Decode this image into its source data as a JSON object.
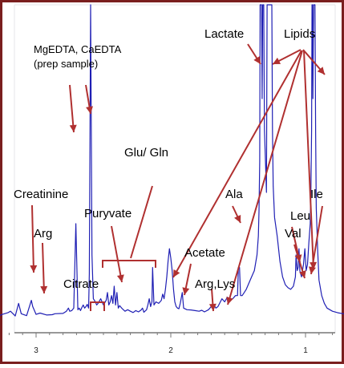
{
  "chart_data": {
    "type": "line",
    "title": "",
    "xlabel": "",
    "ylabel": "",
    "x_reversed": true,
    "xlim": [
      3.3,
      0.7
    ],
    "ticks": [
      {
        "value": 3,
        "label": "3"
      },
      {
        "value": 2,
        "label": "2"
      },
      {
        "value": 1,
        "label": "1"
      }
    ],
    "series": [
      {
        "color": "#1f1fb4",
        "points": [
          [
            3.3,
            0.0
          ],
          [
            3.25,
            1.0
          ],
          [
            3.21,
            1.5
          ],
          [
            3.19,
            2.0
          ],
          [
            3.155,
            0.5
          ],
          [
            3.13,
            4.5
          ],
          [
            3.11,
            1.2
          ],
          [
            3.07,
            0.6
          ],
          [
            3.035,
            5.5
          ],
          [
            3.025,
            3.5
          ],
          [
            3.0,
            1.0
          ],
          [
            2.97,
            1.4
          ],
          [
            2.92,
            0.8
          ],
          [
            2.88,
            0.9
          ],
          [
            2.86,
            1.2
          ],
          [
            2.8,
            1.3
          ],
          [
            2.775,
            2.0
          ],
          [
            2.76,
            3.0
          ],
          [
            2.75,
            2.0
          ],
          [
            2.735,
            2.2
          ],
          [
            2.72,
            3.0
          ],
          [
            2.705,
            30.0
          ],
          [
            2.69,
            2.5
          ],
          [
            2.68,
            3.0
          ],
          [
            2.67,
            2.2
          ],
          [
            2.66,
            3.2
          ],
          [
            2.65,
            4.0
          ],
          [
            2.64,
            3.0
          ],
          [
            2.63,
            3.5
          ],
          [
            2.62,
            4.2
          ],
          [
            2.61,
            3.0
          ],
          [
            2.605,
            14.0
          ],
          [
            2.595,
            100.0
          ],
          [
            2.585,
            20.0
          ],
          [
            2.575,
            6.0
          ],
          [
            2.56,
            5.0
          ],
          [
            2.55,
            4.0
          ],
          [
            2.54,
            4.5
          ],
          [
            2.52,
            6.0
          ],
          [
            2.5,
            4.0
          ],
          [
            2.48,
            5.5
          ],
          [
            2.47,
            8.0
          ],
          [
            2.46,
            4.0
          ],
          [
            2.45,
            5.0
          ],
          [
            2.44,
            7.0
          ],
          [
            2.43,
            4.5
          ],
          [
            2.42,
            10.0
          ],
          [
            2.41,
            4.0
          ],
          [
            2.4,
            8.0
          ],
          [
            2.39,
            3.0
          ],
          [
            2.38,
            3.8
          ],
          [
            2.36,
            2.8
          ],
          [
            2.34,
            2.0
          ],
          [
            2.32,
            2.5
          ],
          [
            2.3,
            2.0
          ],
          [
            2.28,
            1.6
          ],
          [
            2.26,
            2.2
          ],
          [
            2.24,
            1.8
          ],
          [
            2.22,
            2.4
          ],
          [
            2.21,
            3.0
          ],
          [
            2.2,
            1.7
          ],
          [
            2.18,
            2.5
          ],
          [
            2.17,
            4.0
          ],
          [
            2.16,
            6.0
          ],
          [
            2.15,
            3.5
          ],
          [
            2.14,
            5.0
          ],
          [
            2.135,
            16.0
          ],
          [
            2.125,
            4.0
          ],
          [
            2.11,
            5.0
          ],
          [
            2.09,
            4.5
          ],
          [
            2.07,
            5.5
          ],
          [
            2.06,
            7.5
          ],
          [
            2.05,
            6.0
          ],
          [
            2.04,
            9.0
          ],
          [
            2.03,
            13.0
          ],
          [
            2.02,
            18.0
          ],
          [
            2.01,
            22.0
          ],
          [
            2.0,
            19.0
          ],
          [
            1.99,
            15.0
          ],
          [
            1.98,
            9.0
          ],
          [
            1.97,
            5.0
          ],
          [
            1.96,
            3.5
          ],
          [
            1.95,
            3.0
          ],
          [
            1.94,
            2.8
          ],
          [
            1.93,
            4.5
          ],
          [
            1.915,
            8.0
          ],
          [
            1.905,
            3.0
          ],
          [
            1.88,
            2.5
          ],
          [
            1.85,
            2.4
          ],
          [
            1.82,
            2.2
          ],
          [
            1.79,
            2.0
          ],
          [
            1.77,
            2.3
          ],
          [
            1.75,
            1.8
          ],
          [
            1.72,
            2.5
          ],
          [
            1.7,
            3.5
          ],
          [
            1.68,
            4.0
          ],
          [
            1.665,
            3.0
          ],
          [
            1.65,
            3.5
          ],
          [
            1.62,
            6.0
          ],
          [
            1.6,
            5.0
          ],
          [
            1.58,
            6.5
          ],
          [
            1.56,
            5.5
          ],
          [
            1.54,
            6.0
          ],
          [
            1.52,
            7.0
          ],
          [
            1.505,
            7.0
          ],
          [
            1.498,
            16.0
          ],
          [
            1.49,
            16.0
          ],
          [
            1.482,
            7.0
          ],
          [
            1.47,
            7.0
          ],
          [
            1.455,
            8.0
          ],
          [
            1.44,
            9.0
          ],
          [
            1.42,
            11.0
          ],
          [
            1.4,
            13.0
          ],
          [
            1.38,
            15.0
          ],
          [
            1.36,
            20.0
          ],
          [
            1.35,
            26.0
          ],
          [
            1.345,
            34.0
          ],
          [
            1.34,
            50.0
          ],
          [
            1.337,
            100.0
          ],
          [
            1.334,
            100.0
          ],
          [
            1.33,
            100.0
          ],
          [
            1.326,
            100.0
          ],
          [
            1.322,
            70.0
          ],
          [
            1.318,
            100.0
          ],
          [
            1.314,
            100.0
          ],
          [
            1.31,
            100.0
          ],
          [
            1.305,
            60.0
          ],
          [
            1.29,
            40.0
          ],
          [
            1.285,
            100.0
          ],
          [
            1.28,
            100.0
          ],
          [
            1.275,
            100.0
          ],
          [
            1.27,
            100.0
          ],
          [
            1.265,
            100.0
          ],
          [
            1.26,
            100.0
          ],
          [
            1.255,
            100.0
          ],
          [
            1.25,
            100.0
          ],
          [
            1.245,
            60.0
          ],
          [
            1.24,
            42.0
          ],
          [
            1.23,
            32.0
          ],
          [
            1.21,
            26.0
          ],
          [
            1.19,
            18.0
          ],
          [
            1.17,
            13.0
          ],
          [
            1.15,
            10.5
          ],
          [
            1.13,
            9.5
          ],
          [
            1.11,
            9.0
          ],
          [
            1.09,
            10.0
          ],
          [
            1.075,
            13.0
          ],
          [
            1.07,
            20.0
          ],
          [
            1.062,
            15.0
          ],
          [
            1.055,
            16.0
          ],
          [
            1.048,
            22.0
          ],
          [
            1.042,
            15.0
          ],
          [
            1.03,
            13.0
          ],
          [
            1.015,
            17.0
          ],
          [
            1.005,
            22.0
          ],
          [
            0.995,
            15.0
          ],
          [
            0.985,
            17.0
          ],
          [
            0.975,
            24.0
          ],
          [
            0.965,
            30.0
          ],
          [
            0.96,
            40.0
          ],
          [
            0.955,
            60.0
          ],
          [
            0.952,
            100.0
          ],
          [
            0.948,
            100.0
          ],
          [
            0.945,
            70.0
          ],
          [
            0.94,
            100.0
          ],
          [
            0.935,
            100.0
          ],
          [
            0.93,
            100.0
          ],
          [
            0.925,
            60.0
          ],
          [
            0.92,
            35.0
          ],
          [
            0.91,
            22.0
          ],
          [
            0.9,
            12.0
          ],
          [
            0.88,
            7.0
          ],
          [
            0.86,
            4.5
          ],
          [
            0.84,
            3.0
          ],
          [
            0.8,
            2.0
          ],
          [
            0.76,
            1.5
          ],
          [
            0.72,
            1.2
          ],
          [
            0.7,
            1.0
          ]
        ]
      }
    ],
    "annotations": [
      {
        "text": "MgEDTA, CaEDTA"
      },
      {
        "text": "(prep sample)"
      },
      {
        "text": "Lactate"
      },
      {
        "text": "Lipids"
      },
      {
        "text": "Glu/ Gln"
      },
      {
        "text": "Creatinine"
      },
      {
        "text": "Ala"
      },
      {
        "text": "Ile"
      },
      {
        "text": "Puryvate"
      },
      {
        "text": "Leu"
      },
      {
        "text": "Arg"
      },
      {
        "text": "Val"
      },
      {
        "text": "Acetate"
      },
      {
        "text": "Citrate"
      },
      {
        "text": "Arg,Lys"
      }
    ],
    "grid": false,
    "colors": {
      "spectrum": "#1f1fb4",
      "annotation": "#b03030",
      "frame": "#7a1e1e",
      "axis": "#777777"
    }
  }
}
